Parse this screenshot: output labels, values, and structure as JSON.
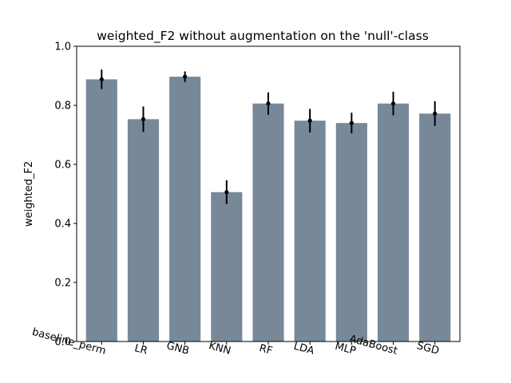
{
  "chart_data": {
    "type": "bar",
    "title": "weighted_F2 without augmentation on the 'null'-class",
    "xlabel": "",
    "ylabel": "weighted_F2",
    "ylim": [
      0.0,
      1.0
    ],
    "yticks": [
      0.0,
      0.2,
      0.4,
      0.6,
      0.8,
      1.0
    ],
    "ytick_labels": [
      "0.0",
      "0.2",
      "0.4",
      "0.6",
      "0.8",
      "1.0"
    ],
    "categories": [
      "baseline_perm",
      "LR",
      "GNB",
      "KNN",
      "RF",
      "LDA",
      "MLP",
      "AdaBoost",
      "SGD"
    ],
    "values": [
      0.888,
      0.753,
      0.897,
      0.506,
      0.806,
      0.748,
      0.74,
      0.806,
      0.772
    ],
    "errors": [
      0.033,
      0.043,
      0.018,
      0.04,
      0.038,
      0.04,
      0.035,
      0.04,
      0.042
    ],
    "bar_color": "#778899",
    "error_color": "#000000",
    "grid": false,
    "legend": "none"
  }
}
